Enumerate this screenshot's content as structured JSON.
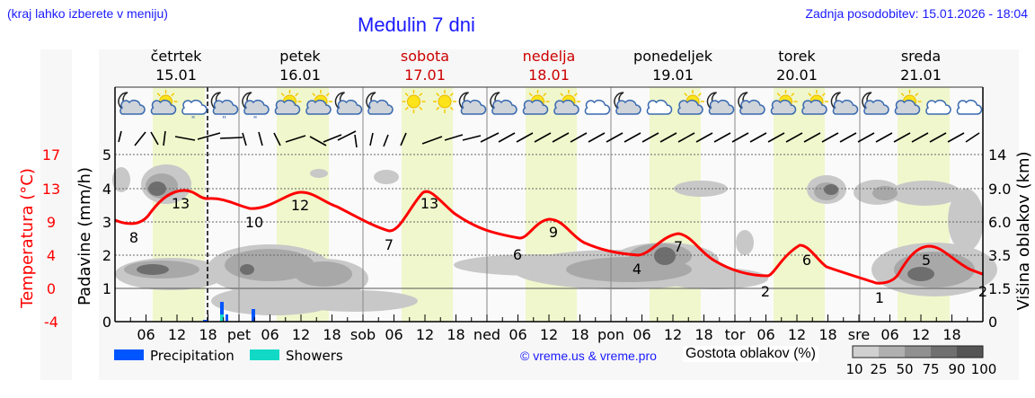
{
  "header": {
    "region_hint": "(kraj lahko izberete v meniju)",
    "title": "Medulin 7 dni",
    "last_update": "Zadnja posodobitev: 15.01.2026 - 18:04"
  },
  "days": [
    {
      "name": "četrtek",
      "date": "15.01",
      "weekend": false
    },
    {
      "name": "petek",
      "date": "16.01",
      "weekend": false
    },
    {
      "name": "sobota",
      "date": "17.01",
      "weekend": true
    },
    {
      "name": "nedelja",
      "date": "18.01",
      "weekend": true
    },
    {
      "name": "ponedeljek",
      "date": "19.01",
      "weekend": false
    },
    {
      "name": "torek",
      "date": "20.01",
      "weekend": false
    },
    {
      "name": "sreda",
      "date": "21.01",
      "weekend": false
    }
  ],
  "weather_icons": [
    "moon-cloud-icon",
    "sun-cloud-icon",
    "cloud-drizzle-icon",
    "moon-cloud-drizzle-icon",
    "moon-cloud-drizzle-icon",
    "sun-cloud-icon",
    "sun-cloud-icon",
    "moon-cloud-icon",
    "moon-cloud-icon",
    "sun-icon",
    "sun-icon",
    "moon-cloud-icon",
    "moon-cloud-icon",
    "sun-cloud-icon",
    "sun-cloud-icon",
    "cloud-icon",
    "moon-cloud-icon",
    "cloud-icon",
    "sun-cloud-icon",
    "moon-cloud-icon",
    "moon-cloud-icon",
    "sun-cloud-icon",
    "sun-cloud-icon",
    "moon-cloud-icon",
    "moon-cloud-icon",
    "sun-cloud-icon",
    "cloud-icon",
    "cloud-icon"
  ],
  "axes": {
    "temp_label": "Temperatura (°C)",
    "temp_ticks": [
      "17",
      "13",
      "9",
      "4",
      "0",
      "-4"
    ],
    "rain_label": "Padavine (mm/h)",
    "rain_ticks": [
      "5",
      "4",
      "3",
      "2",
      "1",
      "0"
    ],
    "cloud_label": "Višina oblakov (km)",
    "cloud_ticks": [
      "14",
      "9.0",
      "6.0",
      "3.5",
      "1.5",
      "0"
    ],
    "x_ticks": [
      "06",
      "12",
      "18",
      "pet",
      "06",
      "12",
      "18",
      "sob",
      "06",
      "12",
      "18",
      "ned",
      "06",
      "12",
      "18",
      "pon",
      "06",
      "12",
      "18",
      "tor",
      "06",
      "12",
      "18",
      "sre",
      "06",
      "12",
      "18"
    ]
  },
  "legend": {
    "precipitation": "Precipitation",
    "showers": "Showers",
    "precipitation_color": "#0055ff",
    "showers_color": "#11d9c6",
    "copyright": "© vreme.us & vreme.pro",
    "cloud_density_label": "Gostota oblakov (%)",
    "cloud_density_ticks": [
      "10",
      "25",
      "50",
      "75",
      "90",
      "100"
    ]
  },
  "colors": {
    "temp_curve": "#ff0000",
    "daylight": "#f0f7cc",
    "link": "#1a1aff",
    "weekend": "#cc0000"
  },
  "chart_data": {
    "type": "line",
    "title": "Medulin 7 dni",
    "xlabel": "",
    "ylabel": "Temperatura (°C)",
    "x_range": "15.01 00h – 21.01 24h",
    "series": [
      {
        "name": "Temperatura (°C)",
        "labels": [
          {
            "time": "čet 03h",
            "value": 8
          },
          {
            "time": "čet 13h",
            "value": 13
          },
          {
            "time": "pet 02h",
            "value": 10
          },
          {
            "time": "pet 13h",
            "value": 12
          },
          {
            "time": "sob 05h",
            "value": 7
          },
          {
            "time": "sob 12h",
            "value": 13
          },
          {
            "time": "ned 06h",
            "value": 6
          },
          {
            "time": "ned 12h",
            "value": 9
          },
          {
            "time": "pon 06h",
            "value": 4
          },
          {
            "time": "pon 12h",
            "value": 7
          },
          {
            "time": "tor 06h",
            "value": 2
          },
          {
            "time": "tor 12h",
            "value": 6
          },
          {
            "time": "sre 05h",
            "value": 1
          },
          {
            "time": "sre 13h",
            "value": 5
          },
          {
            "time": "sre 24h",
            "value": 2
          }
        ]
      },
      {
        "name": "Precipitation (mm/h)",
        "values": [
          {
            "time": "čet 18h",
            "value": 0.05
          },
          {
            "time": "čet 21h",
            "value": 0.6
          },
          {
            "time": "čet 22h",
            "value": 0.3
          },
          {
            "time": "pet 03h",
            "value": 0.4
          }
        ]
      },
      {
        "name": "Showers (mm/h)",
        "values": [
          {
            "time": "čet 21h",
            "value": 0.2
          }
        ]
      }
    ],
    "rain_ylim": [
      0,
      5
    ],
    "temp_ticks": [
      17,
      13,
      9,
      4,
      0,
      -4
    ],
    "cloud_height_ticks_km": [
      0,
      1.5,
      3.5,
      6.0,
      9.0,
      14
    ],
    "cloud_density_legend": [
      10,
      25,
      50,
      75,
      90,
      100
    ],
    "now_marker": "čet 18h (dashed line)",
    "grid": true
  }
}
